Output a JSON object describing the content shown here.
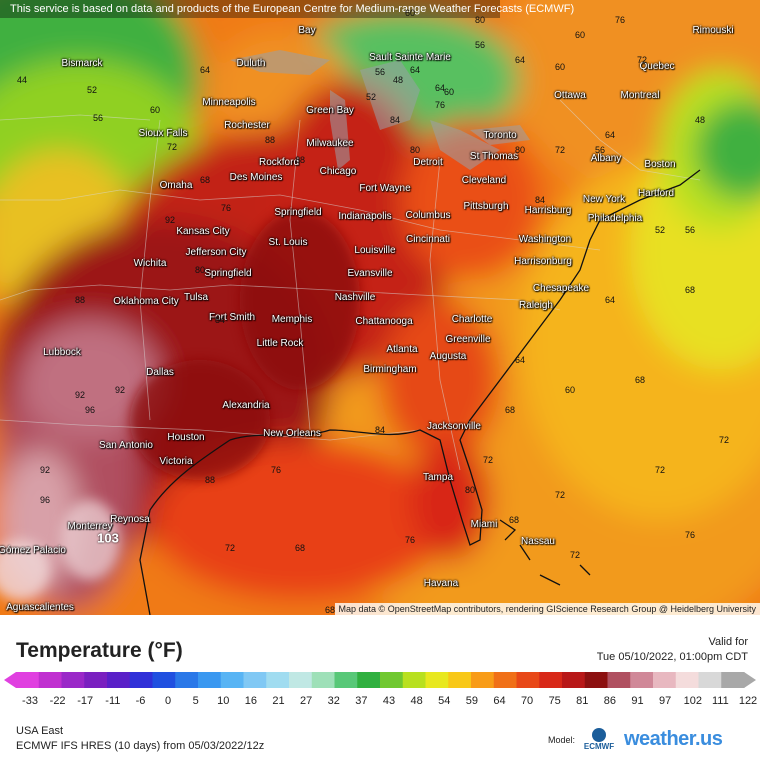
{
  "notice": "This service is based on data and products of the European Centre for Medium-range Weather Forecasts (ECMWF)",
  "attribution": "Map data © OpenStreetMap contributors, rendering GIScience Research Group @ Heidelberg University",
  "legend": {
    "title": "Temperature (°F)",
    "valid_label": "Valid for",
    "valid_time": "Tue 05/10/2022, 01:00pm CDT",
    "ticks": [
      "-33",
      "-22",
      "-17",
      "-11",
      "-6",
      "0",
      "5",
      "10",
      "16",
      "21",
      "27",
      "32",
      "37",
      "43",
      "48",
      "54",
      "59",
      "64",
      "70",
      "75",
      "81",
      "86",
      "91",
      "97",
      "102",
      "111",
      "122"
    ],
    "colors": [
      "#e040e0",
      "#c030d0",
      "#9a28c8",
      "#7a20c0",
      "#5a20c8",
      "#3030d8",
      "#2050e0",
      "#2a78e8",
      "#3a98f0",
      "#58b4f4",
      "#80c8f4",
      "#a0dcf0",
      "#c0e8e4",
      "#9ee0b8",
      "#58c878",
      "#30b040",
      "#70c830",
      "#b8e020",
      "#e8e820",
      "#f8c818",
      "#f89c18",
      "#f07018",
      "#e84818",
      "#d82818",
      "#b81818",
      "#8c1010",
      "#b05060",
      "#d08898",
      "#e8b8c0",
      "#f4dcdc",
      "#d8d8d8",
      "#a8a8a8"
    ]
  },
  "region": "USA East",
  "model_line": "ECMWF IFS HRES (10 days) from 05/03/2022/12z",
  "model_label": "Model:",
  "ecmwf_label": "ECMWF",
  "brand": "weather.us",
  "cities": [
    {
      "name": "Bismarck"
    },
    {
      "name": "Duluth"
    },
    {
      "name": "Sault Sainte Marie"
    },
    {
      "name": "Minneapolis"
    },
    {
      "name": "Rochester"
    },
    {
      "name": "Green Bay"
    },
    {
      "name": "Sioux Falls"
    },
    {
      "name": "Milwaukee"
    },
    {
      "name": "Rockford"
    },
    {
      "name": "Chicago"
    },
    {
      "name": "Des Moines"
    },
    {
      "name": "Omaha"
    },
    {
      "name": "Springfield"
    },
    {
      "name": "Kansas City"
    },
    {
      "name": "St. Louis"
    },
    {
      "name": "Jefferson City"
    },
    {
      "name": "Springfield"
    },
    {
      "name": "Wichita"
    },
    {
      "name": "Oklahoma City"
    },
    {
      "name": "Tulsa"
    },
    {
      "name": "Fort Smith"
    },
    {
      "name": "Memphis"
    },
    {
      "name": "Little Rock"
    },
    {
      "name": "Lubbock"
    },
    {
      "name": "Dallas"
    },
    {
      "name": "Alexandria"
    },
    {
      "name": "San Antonio"
    },
    {
      "name": "Houston"
    },
    {
      "name": "Victoria"
    },
    {
      "name": "New Orleans"
    },
    {
      "name": "Monterrey"
    },
    {
      "name": "Reynosa"
    },
    {
      "name": "Gómez Palacio"
    },
    {
      "name": "Aguascalientes"
    },
    {
      "name": "Fort Wayne"
    },
    {
      "name": "Indianapolis"
    },
    {
      "name": "Louisville"
    },
    {
      "name": "Evansville"
    },
    {
      "name": "Nashville"
    },
    {
      "name": "Chattanooga"
    },
    {
      "name": "Atlanta"
    },
    {
      "name": "Birmingham"
    },
    {
      "name": "Augusta"
    },
    {
      "name": "Charlotte"
    },
    {
      "name": "Greenville"
    },
    {
      "name": "Raleigh"
    },
    {
      "name": "Jacksonville"
    },
    {
      "name": "Tampa"
    },
    {
      "name": "Miami"
    },
    {
      "name": "Nassau"
    },
    {
      "name": "Havana"
    },
    {
      "name": "Detroit"
    },
    {
      "name": "Cleveland"
    },
    {
      "name": "Columbus"
    },
    {
      "name": "Cincinnati"
    },
    {
      "name": "Pittsburgh"
    },
    {
      "name": "Washington"
    },
    {
      "name": "Harrisonburg"
    },
    {
      "name": "Chesapeake"
    },
    {
      "name": "Harrisburg"
    },
    {
      "name": "Philadelphia"
    },
    {
      "name": "New York"
    },
    {
      "name": "Hartford"
    },
    {
      "name": "Boston"
    },
    {
      "name": "Albany"
    },
    {
      "name": "Toronto"
    },
    {
      "name": "St Thomas"
    },
    {
      "name": "Ottawa"
    },
    {
      "name": "Montreal"
    },
    {
      "name": "Quebec"
    },
    {
      "name": "Rimouski"
    },
    {
      "name": "Bay"
    }
  ],
  "isotherm_values": [
    "44",
    "52",
    "56",
    "60",
    "64",
    "68",
    "72",
    "76",
    "80",
    "84",
    "88",
    "92",
    "96",
    "60",
    "56",
    "52",
    "48",
    "64",
    "68",
    "72",
    "76",
    "72",
    "68",
    "64",
    "60",
    "56",
    "68",
    "72",
    "80",
    "84",
    "92",
    "92",
    "96",
    "88",
    "84",
    "80",
    "76",
    "72",
    "68",
    "64",
    "56",
    "60",
    "64",
    "72",
    "76",
    "80",
    "84",
    "88",
    "72",
    "68",
    "64",
    "60",
    "56",
    "52",
    "48",
    "60",
    "64",
    "72",
    "76",
    "80",
    "88",
    "92",
    "76",
    "72",
    "68"
  ],
  "big_value": "103"
}
